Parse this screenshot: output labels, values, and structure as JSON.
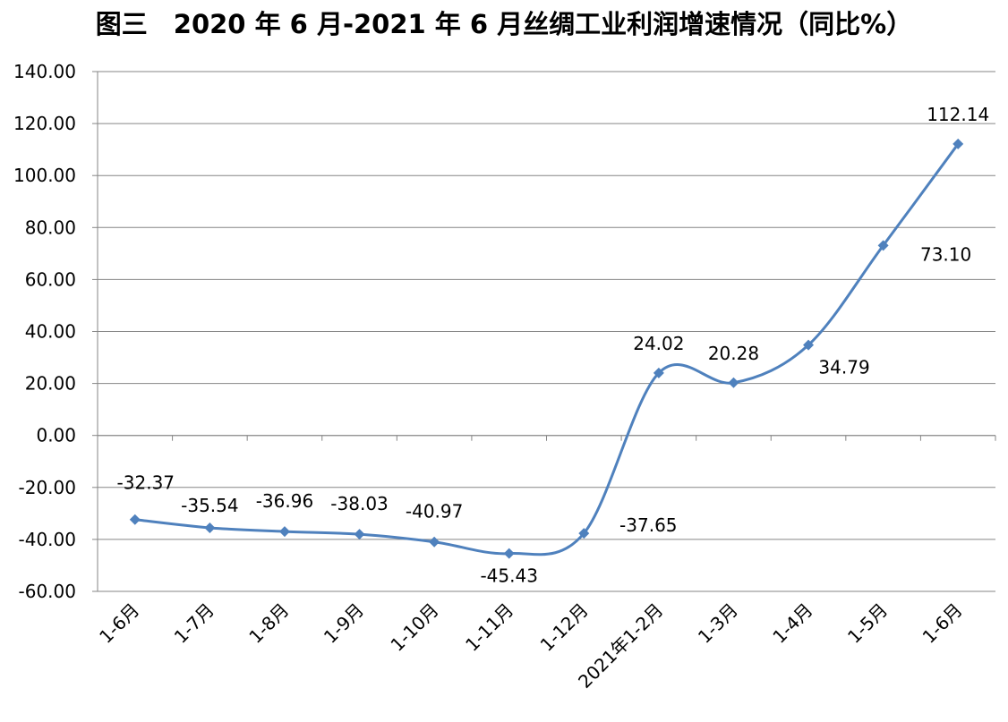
{
  "title": "图三　2020 年 6 月-2021 年 6 月丝绸工业利润增速情况（同比%）",
  "chart_data": {
    "type": "line",
    "title": "图三　2020 年 6 月-2021 年 6 月丝绸工业利润增速情况（同比%）",
    "xlabel": "",
    "ylabel": "",
    "categories": [
      "1-6月",
      "1-7月",
      "1-8月",
      "1-9月",
      "1-10月",
      "1-11月",
      "1-12月",
      "2021年1-2月",
      "1-3月",
      "1-4月",
      "1-5月",
      "1-6月"
    ],
    "series": [
      {
        "values": [
          -32.37,
          -35.54,
          -36.96,
          -38.03,
          -40.97,
          -45.43,
          -37.65,
          24.02,
          20.28,
          34.79,
          73.1,
          112.14
        ]
      }
    ],
    "data_labels": [
      "-32.37",
      "-35.54",
      "-36.96",
      "-38.03",
      "-40.97",
      "-45.43",
      "-37.65",
      "24.02",
      "20.28",
      "34.79",
      "73.10",
      "112.14"
    ],
    "y_ticks": [
      "140.00",
      "120.00",
      "100.00",
      "80.00",
      "60.00",
      "40.00",
      "20.00",
      "0.00",
      "-20.00",
      "-40.00",
      "-60.00"
    ],
    "ylim": [
      -60,
      140
    ],
    "grid": true,
    "smooth": true,
    "marker": "diamond",
    "colors": {
      "line": "#4F81BD",
      "marker": "#4F81BD",
      "grid": "#868686"
    }
  }
}
